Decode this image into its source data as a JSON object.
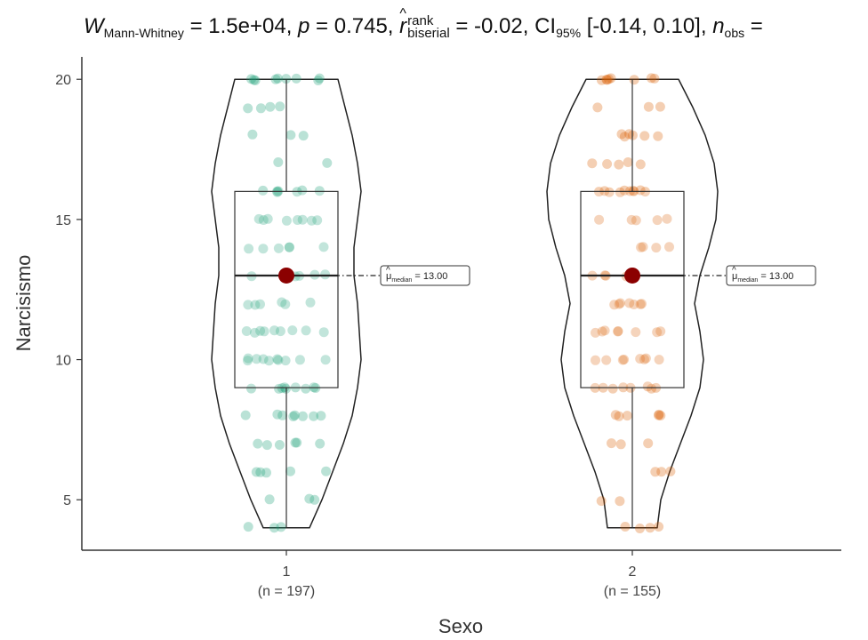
{
  "chart_data": {
    "type": "violin",
    "title": {
      "stat_symbol": "W",
      "stat_subscript": "Mann-Whitney",
      "stat_value": " = 1.5e+04, ",
      "p_symbol": "p",
      "p_value": " = 0.745, ",
      "effect_symbol": "r",
      "effect_superscript": "rank",
      "effect_subscript": "biserial",
      "effect_value": " = -0.02, ",
      "ci_symbol": "CI",
      "ci_subscript": "95%",
      "ci_value": " [-0.14, 0.10], ",
      "n_symbol": "n",
      "n_subscript": "obs",
      "n_value": " ="
    },
    "xlabel": "Sexo",
    "ylabel": "Narcisismo",
    "ylim": [
      3.2,
      20.8
    ],
    "yticks": [
      "5",
      "10",
      "15",
      "20"
    ],
    "grid": false,
    "groups": [
      {
        "category": "1",
        "n_label": "(n = 197)",
        "color": "#1b9e77",
        "min": 4,
        "q1": 9,
        "median": 13,
        "q3": 16,
        "max": 20,
        "median_label": "13.00",
        "points": [
          20,
          20,
          20,
          20,
          20,
          20,
          20,
          20,
          20,
          19,
          19,
          19,
          19,
          18,
          18,
          18,
          17,
          17,
          16,
          16,
          16,
          16,
          16,
          16,
          16,
          15,
          15,
          15,
          15,
          15,
          15,
          15,
          15,
          14,
          14,
          14,
          14,
          14,
          14,
          13,
          13,
          13,
          13,
          13,
          12,
          12,
          12,
          12,
          12,
          12,
          11,
          11,
          11,
          11,
          11,
          11,
          11,
          11,
          11,
          10,
          10,
          10,
          10,
          10,
          10,
          10,
          10,
          10,
          10,
          9,
          9,
          9,
          9,
          9,
          9,
          9,
          9,
          9,
          8,
          8,
          8,
          8,
          8,
          8,
          8,
          8,
          7,
          7,
          7,
          7,
          7,
          7,
          6,
          6,
          6,
          6,
          6,
          5,
          5,
          5,
          4,
          4,
          4
        ]
      },
      {
        "category": "2",
        "n_label": "(n = 155)",
        "color": "#d95f02",
        "min": 4,
        "q1": 9,
        "median": 13,
        "q3": 16,
        "max": 20,
        "median_label": "13.00",
        "points": [
          20,
          20,
          20,
          20,
          20,
          20,
          20,
          20,
          19,
          19,
          19,
          18,
          18,
          18,
          18,
          18,
          18,
          17,
          17,
          17,
          17,
          17,
          16,
          16,
          16,
          16,
          16,
          16,
          16,
          16,
          16,
          16,
          15,
          15,
          15,
          15,
          15,
          14,
          14,
          14,
          14,
          13,
          13,
          13,
          13,
          13,
          12,
          12,
          12,
          12,
          12,
          12,
          12,
          11,
          11,
          11,
          11,
          11,
          11,
          11,
          11,
          10,
          10,
          10,
          10,
          10,
          10,
          10,
          10,
          9,
          9,
          9,
          9,
          9,
          9,
          9,
          9,
          8,
          8,
          8,
          8,
          8,
          8,
          7,
          7,
          7,
          6,
          6,
          6,
          5,
          5,
          4,
          4,
          4,
          4
        ]
      }
    ],
    "median_symbol": "μ",
    "median_subscript": "median"
  }
}
